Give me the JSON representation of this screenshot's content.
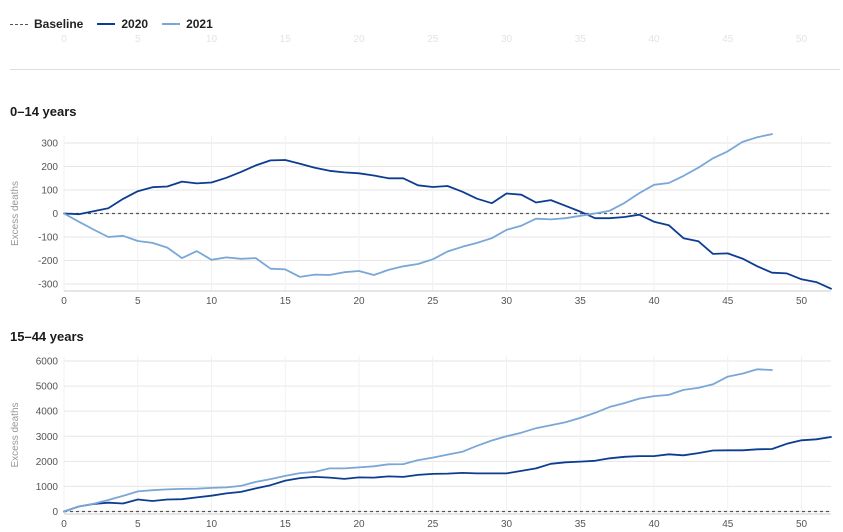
{
  "legend": [
    {
      "label": "Baseline",
      "color": "#555555",
      "style": "dashed"
    },
    {
      "label": "2020",
      "color": "#0d3d91",
      "style": "solid"
    },
    {
      "label": "2021",
      "color": "#7aa7d8",
      "style": "solid"
    }
  ],
  "top_axis_ticks": [
    "0",
    "5",
    "10",
    "15",
    "20",
    "25",
    "30",
    "35",
    "40",
    "45",
    "50"
  ],
  "panels": [
    {
      "title": "0–14 years",
      "ylabel": "Excess deaths"
    },
    {
      "title": "15–44 years",
      "ylabel": "Excess deaths"
    }
  ],
  "chart_data": [
    {
      "type": "line",
      "title": "0–14 years",
      "ylabel": "Excess deaths",
      "xlim": [
        0,
        52
      ],
      "ylim": [
        -330,
        330
      ],
      "xticks": [
        0,
        5,
        10,
        15,
        20,
        25,
        30,
        35,
        40,
        45,
        50
      ],
      "yticks": [
        -300,
        -200,
        -100,
        0,
        100,
        200,
        300
      ],
      "grid": true,
      "baseline": 0,
      "series": [
        {
          "name": "2020",
          "color": "#0d3d91",
          "x": [
            0,
            1,
            2,
            3,
            4,
            5,
            6,
            7,
            8,
            9,
            10,
            11,
            12,
            13,
            14,
            15,
            16,
            17,
            18,
            19,
            20,
            21,
            22,
            23,
            24,
            25,
            26,
            27,
            28,
            29,
            30,
            31,
            32,
            33,
            34,
            35,
            36,
            37,
            38,
            39,
            40,
            41,
            42,
            43,
            44,
            45,
            46,
            47,
            48,
            49,
            50,
            51,
            52
          ],
          "values": [
            0,
            -3,
            10,
            22,
            62,
            95,
            112,
            115,
            136,
            128,
            132,
            152,
            177,
            205,
            226,
            228,
            212,
            195,
            182,
            175,
            171,
            162,
            150,
            150,
            120,
            113,
            117,
            93,
            63,
            44,
            85,
            80,
            47,
            57,
            33,
            8,
            -20,
            -20,
            -15,
            -5,
            -35,
            -50,
            -105,
            -118,
            -172,
            -170,
            -192,
            -225,
            -252,
            -255,
            -280,
            -292,
            -320
          ]
        },
        {
          "name": "2021",
          "color": "#7aa7d8",
          "x": [
            0,
            1,
            2,
            3,
            4,
            5,
            6,
            7,
            8,
            9,
            10,
            11,
            12,
            13,
            14,
            15,
            16,
            17,
            18,
            19,
            20,
            21,
            22,
            23,
            24,
            25,
            26,
            27,
            28,
            29,
            30,
            31,
            32,
            33,
            34,
            35,
            36,
            37,
            38,
            39,
            40,
            41,
            42,
            43,
            44,
            45,
            46,
            47,
            48
          ],
          "values": [
            0,
            -35,
            -68,
            -100,
            -95,
            -117,
            -125,
            -145,
            -190,
            -160,
            -197,
            -187,
            -193,
            -190,
            -235,
            -238,
            -270,
            -260,
            -262,
            -250,
            -245,
            -262,
            -240,
            -225,
            -215,
            -195,
            -162,
            -142,
            -125,
            -105,
            -70,
            -52,
            -22,
            -25,
            -20,
            -10,
            0,
            12,
            45,
            87,
            122,
            130,
            160,
            195,
            235,
            265,
            305,
            325,
            338
          ]
        }
      ]
    },
    {
      "type": "line",
      "title": "15–44 years",
      "ylabel": "Excess deaths",
      "xlim": [
        0,
        52
      ],
      "ylim": [
        -100,
        6200
      ],
      "xticks": [
        0,
        5,
        10,
        15,
        20,
        25,
        30,
        35,
        40,
        45,
        50
      ],
      "yticks": [
        0,
        1000,
        2000,
        3000,
        4000,
        5000,
        6000
      ],
      "grid": true,
      "baseline": 0,
      "series": [
        {
          "name": "2020",
          "color": "#0d3d91",
          "x": [
            0,
            1,
            2,
            3,
            4,
            5,
            6,
            7,
            8,
            9,
            10,
            11,
            12,
            13,
            14,
            15,
            16,
            17,
            18,
            19,
            20,
            21,
            22,
            23,
            24,
            25,
            26,
            27,
            28,
            29,
            30,
            31,
            32,
            33,
            34,
            35,
            36,
            37,
            38,
            39,
            40,
            41,
            42,
            43,
            44,
            45,
            46,
            47,
            48,
            49,
            50,
            51,
            52
          ],
          "values": [
            0,
            200,
            300,
            350,
            320,
            480,
            420,
            480,
            490,
            560,
            630,
            720,
            780,
            920,
            1050,
            1230,
            1330,
            1380,
            1350,
            1300,
            1360,
            1350,
            1400,
            1380,
            1460,
            1500,
            1510,
            1540,
            1520,
            1520,
            1520,
            1620,
            1720,
            1900,
            1960,
            1990,
            2020,
            2120,
            2180,
            2210,
            2210,
            2280,
            2240,
            2330,
            2430,
            2440,
            2440,
            2480,
            2490,
            2700,
            2840,
            2880,
            2970
          ]
        },
        {
          "name": "2021",
          "color": "#7aa7d8",
          "x": [
            0,
            1,
            2,
            3,
            4,
            5,
            6,
            7,
            8,
            9,
            10,
            11,
            12,
            13,
            14,
            15,
            16,
            17,
            18,
            19,
            20,
            21,
            22,
            23,
            24,
            25,
            26,
            27,
            28,
            29,
            30,
            31,
            32,
            33,
            34,
            35,
            36,
            37,
            38,
            39,
            40,
            41,
            42,
            43,
            44,
            45,
            46,
            47,
            48
          ],
          "values": [
            0,
            200,
            310,
            460,
            620,
            800,
            850,
            880,
            900,
            910,
            940,
            960,
            1020,
            1180,
            1290,
            1420,
            1530,
            1580,
            1720,
            1720,
            1760,
            1800,
            1880,
            1890,
            2050,
            2150,
            2270,
            2380,
            2620,
            2830,
            3000,
            3140,
            3320,
            3440,
            3560,
            3730,
            3930,
            4170,
            4320,
            4500,
            4600,
            4650,
            4850,
            4930,
            5070,
            5380,
            5500,
            5670,
            5640
          ]
        }
      ]
    }
  ]
}
